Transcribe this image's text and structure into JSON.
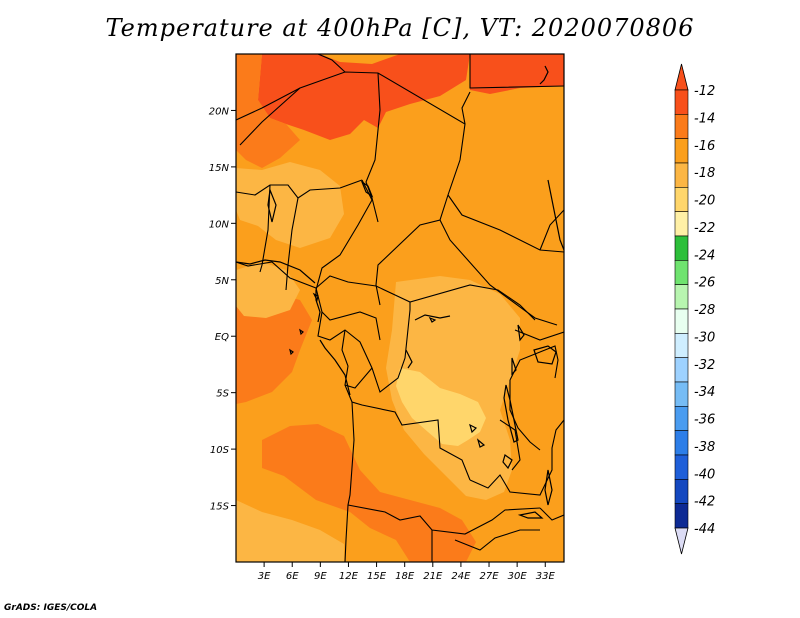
{
  "title": "Temperature at 400hPa [C], VT: 2020070806",
  "credit": "GrADS: IGES/COLA",
  "map": {
    "variable": "Temperature",
    "level": "400hPa",
    "units": "C",
    "valid_time": "2020070806",
    "lon_range": [
      0,
      35
    ],
    "lat_range": [
      -20,
      25
    ],
    "x_ticks": [
      {
        "lon": 3,
        "label": "3E"
      },
      {
        "lon": 6,
        "label": "6E"
      },
      {
        "lon": 9,
        "label": "9E"
      },
      {
        "lon": 12,
        "label": "12E"
      },
      {
        "lon": 15,
        "label": "15E"
      },
      {
        "lon": 18,
        "label": "18E"
      },
      {
        "lon": 21,
        "label": "21E"
      },
      {
        "lon": 24,
        "label": "24E"
      },
      {
        "lon": 27,
        "label": "27E"
      },
      {
        "lon": 30,
        "label": "30E"
      },
      {
        "lon": 33,
        "label": "33E"
      }
    ],
    "y_ticks": [
      {
        "lat": 20,
        "label": "20N"
      },
      {
        "lat": 15,
        "label": "15N"
      },
      {
        "lat": 10,
        "label": "10N"
      },
      {
        "lat": 5,
        "label": "5N"
      },
      {
        "lat": 0,
        "label": "EQ"
      },
      {
        "lat": -5,
        "label": "5S"
      },
      {
        "lat": -10,
        "label": "10S"
      },
      {
        "lat": -15,
        "label": "15S"
      }
    ],
    "background_color": "#fb9f1c",
    "regions": [
      {
        "name": "sahara-hot-core",
        "value_class": "-14 to -12",
        "color": "#f8501b"
      },
      {
        "name": "north-east-warm",
        "value_class": "-14 to -12",
        "color": "#f8501b"
      },
      {
        "name": "nw-warm-band",
        "value_class": "-16 to -14",
        "color": "#fb7b1a"
      },
      {
        "name": "south-west-warm",
        "value_class": "-16 to -14",
        "color": "#fb7b1a"
      },
      {
        "name": "angola-warm",
        "value_class": "-16 to -14",
        "color": "#fb7b1a"
      },
      {
        "name": "west-africa-cool",
        "value_class": "-18 to -16",
        "color": "#fcb644"
      },
      {
        "name": "gulf-cool",
        "value_class": "-18 to -16",
        "color": "#fcb644"
      },
      {
        "name": "congo-basin",
        "value_class": "-18 to -16",
        "color": "#fcb644"
      },
      {
        "name": "central-cool-patch",
        "value_class": "-20 to -18",
        "color": "#ffd66b"
      },
      {
        "name": "sw-coast-cool",
        "value_class": "-18 to -16",
        "color": "#fcb644"
      }
    ]
  },
  "colorbar": {
    "arrow_top_color": "#f8501b",
    "arrow_bottom_color": "#dcdcf5",
    "bins": [
      {
        "color": "#f8501b"
      },
      {
        "color": "#fb7b1a"
      },
      {
        "color": "#fb9f1c"
      },
      {
        "color": "#fcb644"
      },
      {
        "color": "#ffd66b"
      },
      {
        "color": "#fff0a6"
      },
      {
        "color": "#2dbf3a"
      },
      {
        "color": "#6fe36f"
      },
      {
        "color": "#b8f5b0"
      },
      {
        "color": "#e8fff0"
      },
      {
        "color": "#cfeeff"
      },
      {
        "color": "#9ed2ff"
      },
      {
        "color": "#76bcf5"
      },
      {
        "color": "#4a9cf0"
      },
      {
        "color": "#2d7ee8"
      },
      {
        "color": "#1f5fd9"
      },
      {
        "color": "#1448c0"
      },
      {
        "color": "#0d2a94"
      }
    ],
    "labels": [
      "-12",
      "-14",
      "-16",
      "-18",
      "-20",
      "-22",
      "-24",
      "-26",
      "-28",
      "-30",
      "-32",
      "-34",
      "-36",
      "-38",
      "-40",
      "-42",
      "-44"
    ]
  }
}
